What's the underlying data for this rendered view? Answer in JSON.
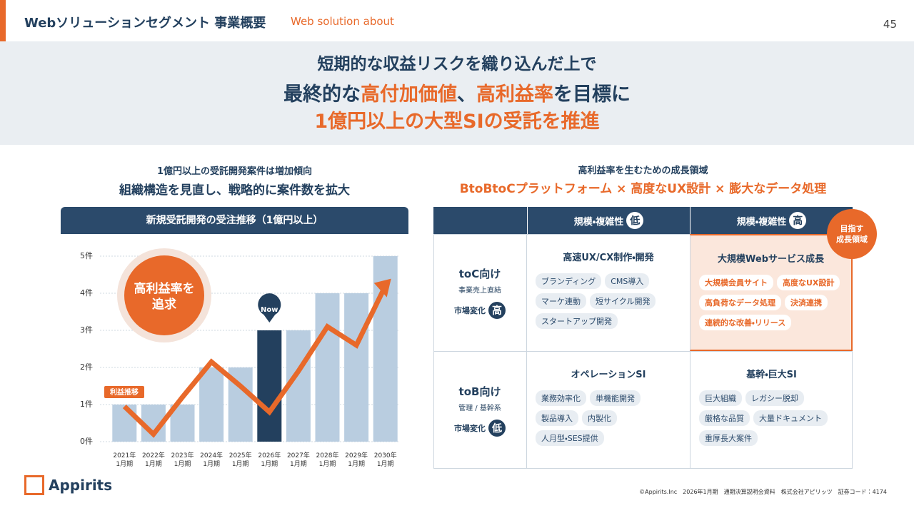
{
  "header": {
    "title": "Webソリューションセグメント 事業概要",
    "subtitle": "Web solution about",
    "page": "45"
  },
  "headline": [
    [
      {
        "text": "短期的な収益リスクを織り込んだ上で",
        "accent": false
      }
    ],
    [
      {
        "text": "最終的な",
        "accent": false
      },
      {
        "text": "高付加価値",
        "accent": true
      },
      {
        "text": "、",
        "accent": false
      },
      {
        "text": "高利益率",
        "accent": true
      },
      {
        "text": "を目標に",
        "accent": false
      }
    ],
    [
      {
        "text": "1億円以上の大型SIの受託を推進",
        "accent": true
      }
    ]
  ],
  "left": {
    "lead": "1億円以上の受託開発案件は増加傾向",
    "heading": "組織構造を見直し、戦略的に案件数を拡大"
  },
  "chart_data": {
    "type": "bar",
    "title": "新規受託開発の受注推移（1億円以上）",
    "categories": [
      "2021年\n1月期",
      "2022年\n1月期",
      "2023年\n1月期",
      "2024年\n1月期",
      "2025年\n1月期",
      "2026年\n1月期",
      "2027年\n1月期",
      "2028年\n1月期",
      "2029年\n1月期",
      "2030年\n1月期"
    ],
    "values": [
      1,
      1,
      1,
      2,
      2,
      3,
      3,
      4,
      4,
      5
    ],
    "colors": [
      "#b9cde0",
      "#b9cde0",
      "#b9cde0",
      "#b9cde0",
      "#b9cde0",
      "#23405e",
      "#b9cde0",
      "#b9cde0",
      "#b9cde0",
      "#b9cde0"
    ],
    "line": {
      "name": "利益推移",
      "color": "#e8692a",
      "values": [
        0.95,
        0.2,
        1.2,
        2.15,
        1.5,
        0.8,
        1.9,
        3.1,
        2.6,
        4.2
      ]
    },
    "ylim": [
      0,
      5
    ],
    "yticks": [
      {
        "value": 0,
        "label": "0件"
      },
      {
        "value": 1,
        "label": "1件"
      },
      {
        "value": 2,
        "label": "2件"
      },
      {
        "value": 3,
        "label": "3件"
      },
      {
        "value": 4,
        "label": "4件"
      },
      {
        "value": 5,
        "label": "5件"
      }
    ],
    "grid": true,
    "annotations": {
      "now": "Now",
      "goal": "高利益率を\n追求"
    }
  },
  "right": {
    "lead": "高利益率を生むための成長領域",
    "heading": "BtoBtoCプラットフォーム × 高度なUX設計 × 膨大なデータ処理"
  },
  "matrix": {
    "columns": [
      {
        "label": "規模・複雑性",
        "badge": "低"
      },
      {
        "label": "規模・複雑性",
        "badge": "高"
      }
    ],
    "target": "目指す\n成長領域",
    "rows": [
      {
        "label": "toC向け",
        "sub": "事業売上直結",
        "change": "市場変化",
        "badge": "高",
        "cells": [
          {
            "title": "高速UX/CX制作・開発",
            "highlight": false,
            "tags": [
              [
                "ブランディング",
                "CMS導入"
              ],
              [
                "マーケ連動",
                "短サイクル開発"
              ],
              [
                "スタートアップ開発"
              ]
            ]
          },
          {
            "title": "大規模Webサービス成長",
            "highlight": true,
            "tags": [
              [
                "大規模会員サイト",
                "高度なUX設計"
              ],
              [
                "高負荷なデータ処理",
                "決済連携"
              ],
              [
                "連続的な改善・リリース"
              ]
            ]
          }
        ]
      },
      {
        "label": "toB向け",
        "sub": "管理 / 基幹系",
        "change": "市場変化",
        "badge": "低",
        "cells": [
          {
            "title": "オペレーションSI",
            "highlight": false,
            "tags": [
              [
                "業務効率化",
                "単機能開発"
              ],
              [
                "製品導入",
                "内製化"
              ],
              [
                "人月型・SES提供"
              ]
            ]
          },
          {
            "title": "基幹・巨大SI",
            "highlight": false,
            "tags": [
              [
                "巨大組織",
                "レガシー脱却"
              ],
              [
                "厳格な品質",
                "大量ドキュメント"
              ],
              [
                "重厚長大案件"
              ]
            ]
          }
        ]
      }
    ]
  },
  "footer": {
    "logo": "Appirits",
    "note": "©Appirits.Inc　2026年1月期　通期決算説明会資料　株式会社アピリッツ　証券コード：4174"
  }
}
